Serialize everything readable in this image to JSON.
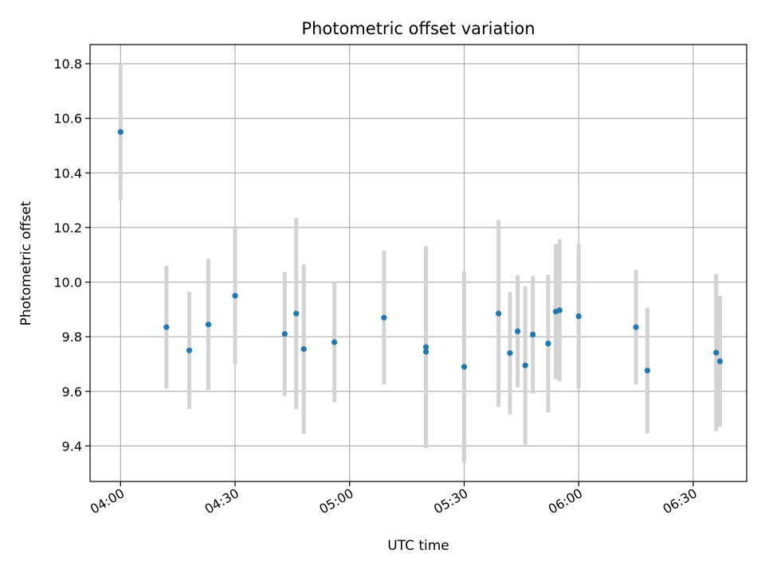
{
  "chart_data": {
    "type": "scatter",
    "title": "Photometric offset variation",
    "xlabel": "UTC time",
    "ylabel": "Photometric offset",
    "x_unit": "HH:MM",
    "xlim": [
      "03:52",
      "06:44"
    ],
    "ylim": [
      9.27,
      10.87
    ],
    "xticks": [
      "04:00",
      "04:30",
      "05:00",
      "05:30",
      "06:00",
      "06:30"
    ],
    "yticks": [
      9.4,
      9.6,
      9.8,
      10.0,
      10.2,
      10.4,
      10.6,
      10.8
    ],
    "grid": true,
    "marker_color": "#1f77b4",
    "errorbar_color": "#d3d3d3",
    "points": [
      {
        "x": "04:00",
        "y": 10.55,
        "err": 0.25
      },
      {
        "x": "04:12",
        "y": 9.835,
        "err": 0.225
      },
      {
        "x": "04:18",
        "y": 9.75,
        "err": 0.215
      },
      {
        "x": "04:23",
        "y": 9.845,
        "err": 0.24
      },
      {
        "x": "04:30",
        "y": 9.95,
        "err": 0.25
      },
      {
        "x": "04:43",
        "y": 9.81,
        "err": 0.227
      },
      {
        "x": "04:46",
        "y": 9.885,
        "err": 0.35
      },
      {
        "x": "04:48",
        "y": 9.755,
        "err": 0.31
      },
      {
        "x": "04:56",
        "y": 9.78,
        "err": 0.22
      },
      {
        "x": "05:09",
        "y": 9.87,
        "err": 0.245
      },
      {
        "x": "05:20",
        "y": 9.745,
        "err": 0.335
      },
      {
        "x": "05:20",
        "y": 9.762,
        "err": 0.37
      },
      {
        "x": "05:30",
        "y": 9.69,
        "err": 0.35
      },
      {
        "x": "05:39",
        "y": 9.885,
        "err": 0.342
      },
      {
        "x": "05:42",
        "y": 9.74,
        "err": 0.225
      },
      {
        "x": "05:44",
        "y": 9.82,
        "err": 0.205
      },
      {
        "x": "05:46",
        "y": 9.695,
        "err": 0.29
      },
      {
        "x": "05:48",
        "y": 9.808,
        "err": 0.215
      },
      {
        "x": "05:52",
        "y": 9.775,
        "err": 0.252
      },
      {
        "x": "05:54",
        "y": 9.892,
        "err": 0.248
      },
      {
        "x": "05:55",
        "y": 9.897,
        "err": 0.26
      },
      {
        "x": "06:00",
        "y": 9.875,
        "err": 0.265
      },
      {
        "x": "06:15",
        "y": 9.835,
        "err": 0.21
      },
      {
        "x": "06:18",
        "y": 9.676,
        "err": 0.23
      },
      {
        "x": "06:36",
        "y": 9.742,
        "err": 0.288
      },
      {
        "x": "06:37",
        "y": 9.71,
        "err": 0.24
      }
    ]
  }
}
